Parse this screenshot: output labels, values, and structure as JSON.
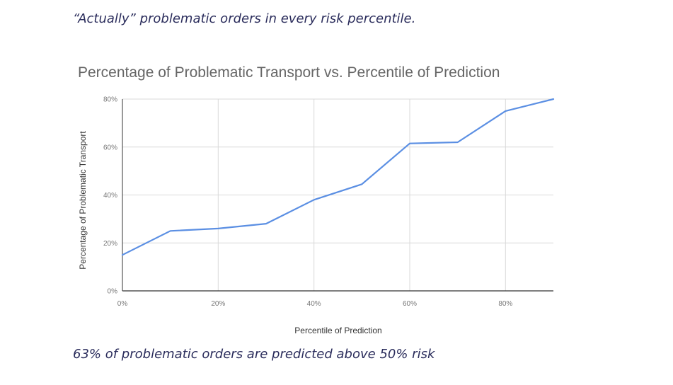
{
  "captions": {
    "top": "“Actually” problematic orders in every risk percentile.",
    "bottom": "63% of problematic orders are predicted above 50% risk"
  },
  "chart_data": {
    "type": "line",
    "title": "Percentage of Problematic Transport vs. Percentile of Prediction",
    "xlabel": "Percentile of Prediction",
    "ylabel": "Percentage of Problematic Transport",
    "xlim": [
      0,
      90
    ],
    "ylim": [
      0,
      80
    ],
    "xticks": [
      0,
      20,
      40,
      60,
      80
    ],
    "xtick_labels": [
      "0%",
      "20%",
      "40%",
      "60%",
      "80%"
    ],
    "yticks": [
      0,
      20,
      40,
      60,
      80
    ],
    "ytick_labels": [
      "0%",
      "20%",
      "40%",
      "60%",
      "80%"
    ],
    "grid": true,
    "series": [
      {
        "x": [
          0,
          10,
          20,
          30,
          40,
          50,
          60,
          70,
          80,
          90
        ],
        "y": [
          15,
          25,
          26,
          28,
          38,
          44.5,
          61.5,
          62,
          75,
          80
        ],
        "color": "#5b8fe3"
      }
    ]
  }
}
